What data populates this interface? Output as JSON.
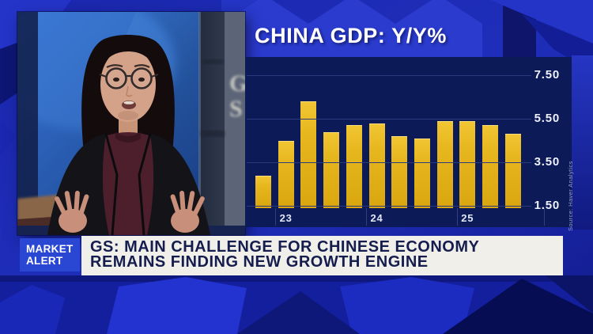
{
  "chart_data": {
    "type": "bar",
    "title": "CHINA GDP: Y/Y%",
    "values": [
      2.9,
      4.5,
      6.3,
      4.9,
      5.2,
      5.3,
      4.7,
      4.6,
      5.4,
      5.4,
      5.2,
      4.8
    ],
    "baseline_value": 1.5,
    "ylim": [
      1.5,
      7.5
    ],
    "y_ticks": [
      7.5,
      5.5,
      3.5,
      1.5
    ],
    "y_tick_labels": [
      "7.50",
      "5.50",
      "3.50",
      "1.50"
    ],
    "x_tick_labels": [
      {
        "label": "23",
        "bar_index": 1
      },
      {
        "label": "24",
        "bar_index": 5
      },
      {
        "label": "25",
        "bar_index": 9
      }
    ],
    "grid": true,
    "legend": "none",
    "bar_color": "#e7b71f",
    "source": "Source: Haver Analytics"
  },
  "ticker": {
    "badge": [
      "MARKET",
      "ALERT"
    ],
    "headline": [
      "GS: MAIN CHALLENGE FOR CHINESE ECONOMY",
      "REMAINS FINDING NEW GROWTH ENGINE"
    ]
  },
  "colors": {
    "background_blue": "#1e2cb5",
    "panel_navy": "#0c1a57",
    "bar_gold": "#e7b71f",
    "badge_blue": "#2947d2",
    "banner_offwhite": "#f1efe9",
    "headline_navy": "#151d4e"
  }
}
